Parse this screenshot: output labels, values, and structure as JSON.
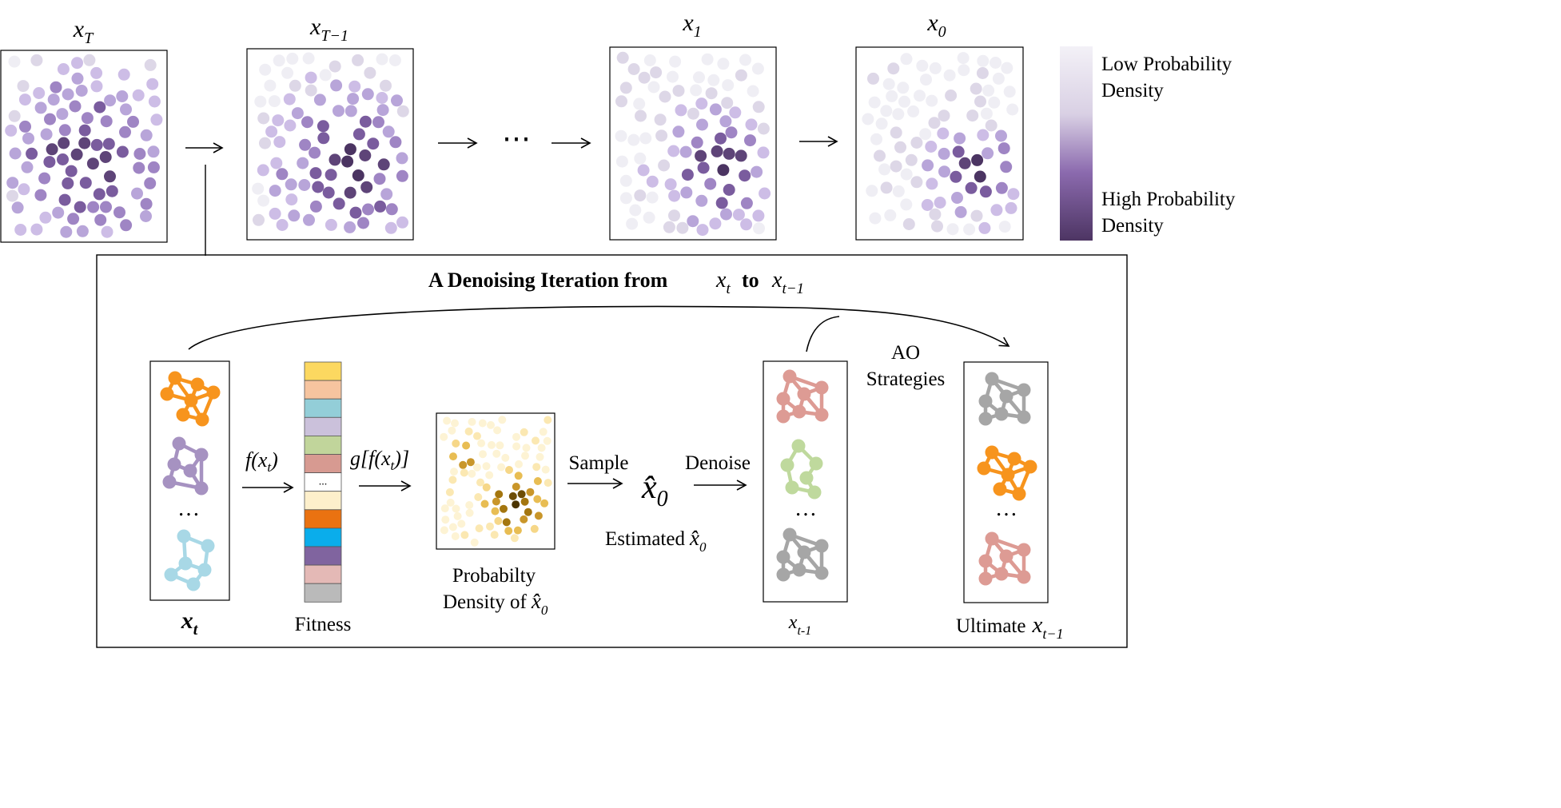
{
  "top_panels": [
    {
      "base": "x",
      "sub": "T"
    },
    {
      "base": "x",
      "sub": "T−1"
    },
    {
      "base": "x",
      "sub": "1"
    },
    {
      "base": "x",
      "sub": "0"
    }
  ],
  "ellipsis": "⋯",
  "legend": {
    "low_line1": "Low Probability",
    "low_line2": "Density",
    "high_line1": "High Probability",
    "high_line2": "Density",
    "colors": [
      "#f3f1f7",
      "#c4b4d6",
      "#8b6aae",
      "#4d3563"
    ]
  },
  "iteration": {
    "title_prefix": "A Denoising Iteration from",
    "title_from": {
      "base": "x",
      "sub": "t"
    },
    "title_mid": "to",
    "title_to": {
      "base": "x",
      "sub": "t−1"
    }
  },
  "xt_label": {
    "base": "x",
    "sub": "t"
  },
  "fx_label": "f(x",
  "fx_sub": "t",
  "fx_close": ")",
  "gfx_label": "g[f(x",
  "gfx_sub": "t",
  "gfx_close": ")]",
  "fitness": {
    "label": "Fitness",
    "ellipsis": "...",
    "colors": [
      "#fcd860",
      "#f6c49f",
      "#93ced8",
      "#cbc1db",
      "#c1d59b",
      "#d79a91",
      "#ffffff",
      "#fdefcb",
      "#ea7211",
      "#0aadeb",
      "#80649f",
      "#e4b9b6",
      "#bababa"
    ]
  },
  "density": {
    "label1": "Probabilty",
    "label2": "Density of",
    "xhat": "x̂",
    "sub": "0"
  },
  "sample": {
    "label": "Sample",
    "xhat": "x̂",
    "sub": "0"
  },
  "estimated": {
    "label": "Estimated",
    "xhat": "x̂",
    "sub": "0"
  },
  "denoise": {
    "label": "Denoise"
  },
  "ao": {
    "line1": "AO",
    "line2": "Strategies"
  },
  "xtm1_label": {
    "base": "x",
    "sub": "t-1"
  },
  "ultimate": {
    "label": "Ultimate",
    "base": "x",
    "sub": "t−1"
  },
  "graph_colors": {
    "orange": "#f7941d",
    "purple": "#a692c1",
    "blue": "#a8d8e6",
    "red": "#dd9b94",
    "green": "#bfd99d",
    "gray": "#a6a6a6"
  },
  "small_ellipsis": "…"
}
